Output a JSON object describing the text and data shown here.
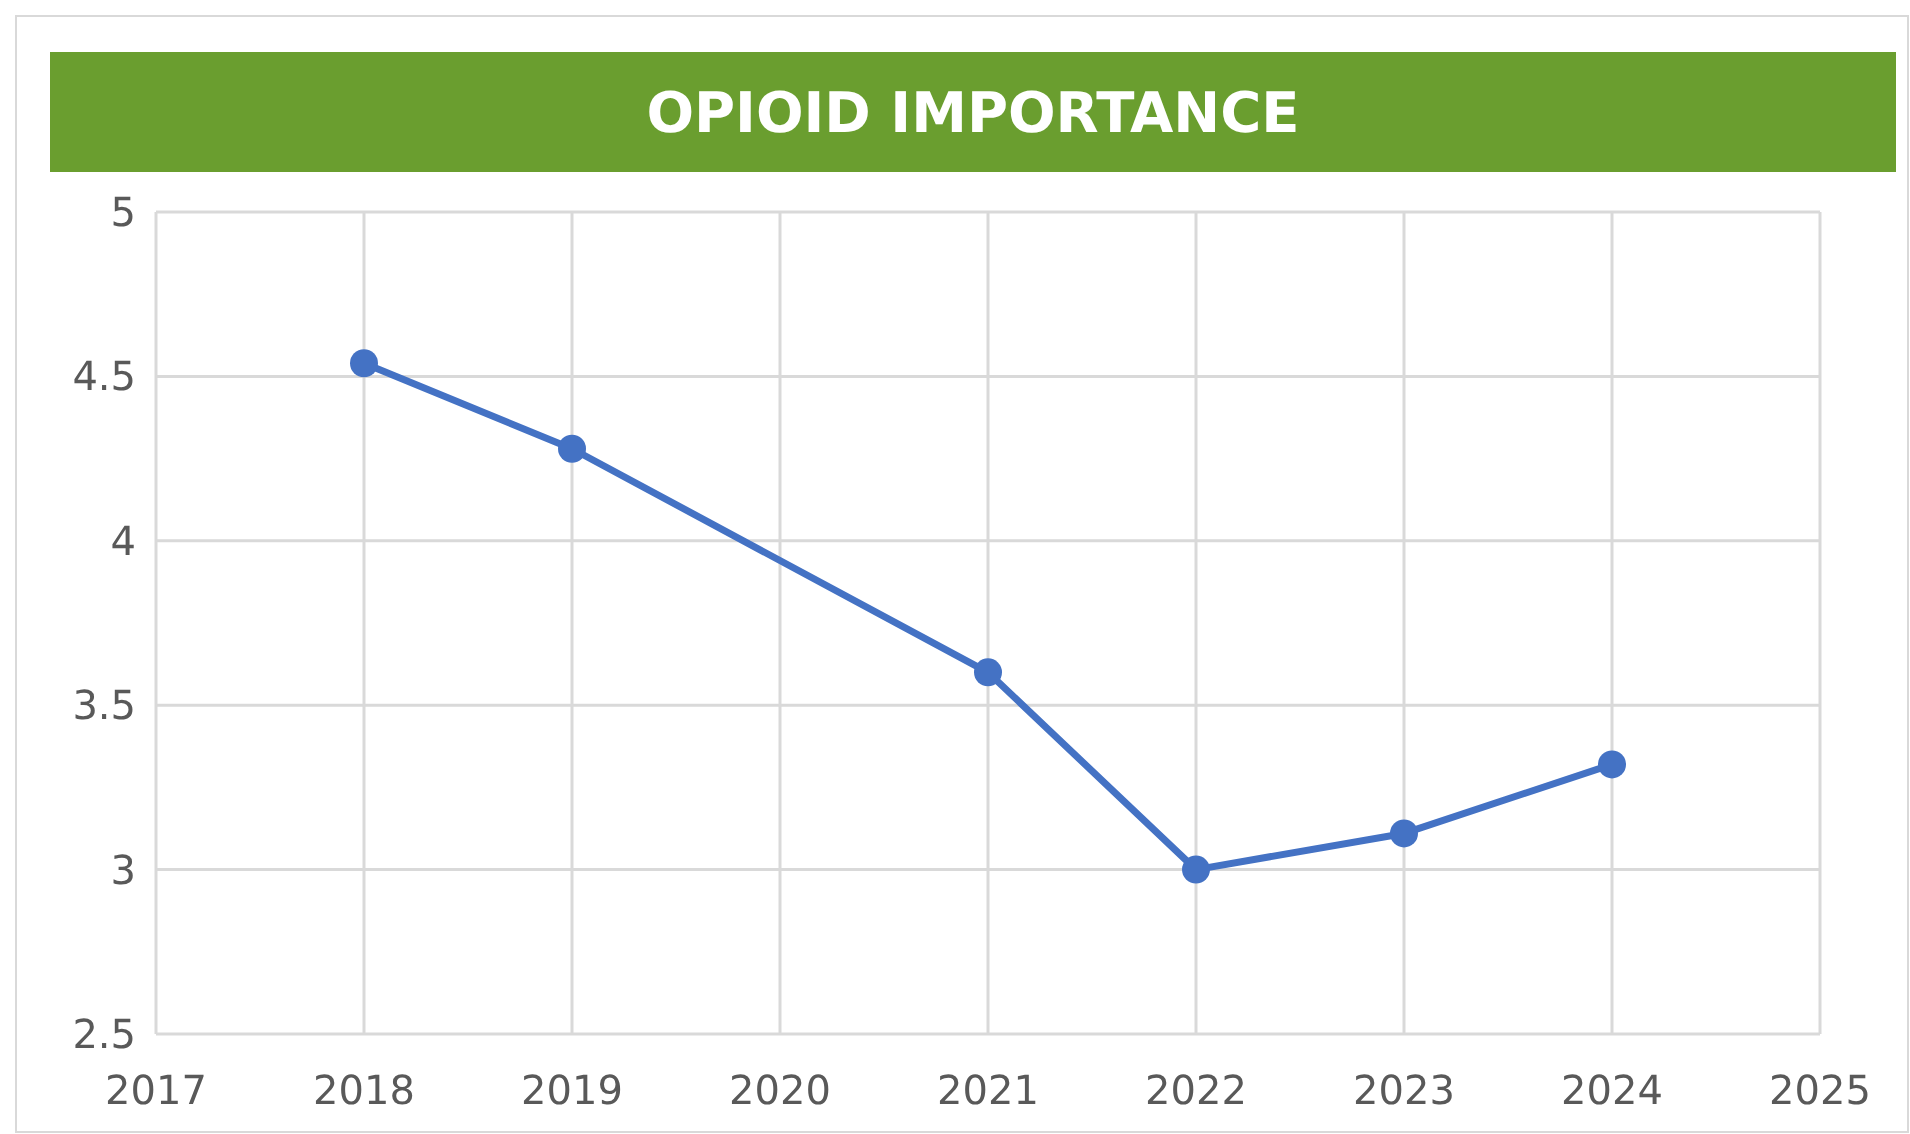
{
  "chart_data": {
    "type": "line",
    "title": "OPIOID IMPORTANCE",
    "x": [
      2018,
      2019,
      2021,
      2022,
      2023,
      2024
    ],
    "series": [
      {
        "color": "#4472c4",
        "values": [
          4.54,
          4.28,
          3.6,
          3.0,
          3.11,
          3.32
        ]
      }
    ],
    "xlim": [
      2017,
      2025
    ],
    "xticks": [
      2017,
      2018,
      2019,
      2020,
      2021,
      2022,
      2023,
      2024,
      2025
    ],
    "ylim": [
      2.5,
      5
    ],
    "yticks": [
      2.5,
      3,
      3.5,
      4,
      4.5,
      5
    ],
    "grid": true,
    "marker": "circle",
    "line_style": "solid"
  }
}
